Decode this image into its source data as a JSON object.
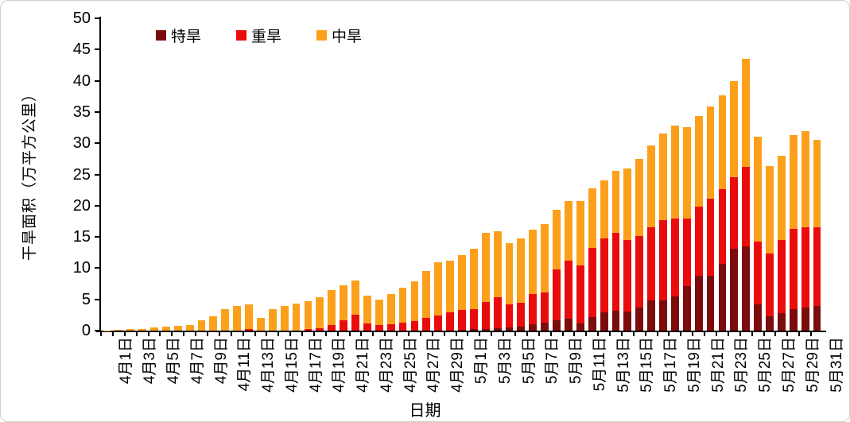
{
  "axes": {
    "x_title": "日期",
    "y_title": "干旱面积（万平方公里）",
    "y_ticks": [
      0,
      5,
      10,
      15,
      20,
      25,
      30,
      35,
      40,
      45,
      50
    ]
  },
  "legend": [
    {
      "label": "特旱",
      "color": "#7b0c0c"
    },
    {
      "label": "重旱",
      "color": "#ea0c0c"
    },
    {
      "label": "中旱",
      "color": "#fca01c"
    }
  ],
  "chart_data": {
    "type": "bar",
    "stacked": true,
    "title": "",
    "xlabel": "日期",
    "ylabel": "干旱面积（万平方公里）",
    "ylim": [
      0,
      50
    ],
    "y_tick_step": 5,
    "grid": false,
    "legend_position": "top-left-inside",
    "x_label_every": 2,
    "categories": [
      "4月1日",
      "4月2日",
      "4月3日",
      "4月4日",
      "4月5日",
      "4月6日",
      "4月7日",
      "4月8日",
      "4月9日",
      "4月10日",
      "4月11日",
      "4月12日",
      "4月13日",
      "4月14日",
      "4月15日",
      "4月16日",
      "4月17日",
      "4月18日",
      "4月19日",
      "4月20日",
      "4月21日",
      "4月22日",
      "4月23日",
      "4月24日",
      "4月25日",
      "4月26日",
      "4月27日",
      "4月28日",
      "4月29日",
      "4月30日",
      "5月1日",
      "5月2日",
      "5月3日",
      "5月4日",
      "5月5日",
      "5月6日",
      "5月7日",
      "5月8日",
      "5月9日",
      "5月10日",
      "5月11日",
      "5月12日",
      "5月13日",
      "5月14日",
      "5月15日",
      "5月16日",
      "5月17日",
      "5月18日",
      "5月19日",
      "5月20日",
      "5月21日",
      "5月22日",
      "5月23日",
      "5月24日",
      "5月25日",
      "5月26日",
      "5月27日",
      "5月28日",
      "5月29日",
      "5月30日",
      "5月31日"
    ],
    "series": [
      {
        "name": "特旱",
        "color": "#7b0c0c",
        "values": [
          0,
          0,
          0,
          0,
          0,
          0,
          0,
          0,
          0,
          0,
          0,
          0,
          0,
          0,
          0,
          0,
          0,
          0,
          0,
          0,
          0,
          0,
          0,
          0,
          0,
          0,
          0,
          0,
          0,
          0,
          0.1,
          0.2,
          0.3,
          0.4,
          0.5,
          0.6,
          1.0,
          1.3,
          1.6,
          1.9,
          1.2,
          2.2,
          2.9,
          3.2,
          3.0,
          3.7,
          4.9,
          4.9,
          5.5,
          7.1,
          8.8,
          8.8,
          10.7,
          13.1,
          13.5,
          4.2,
          2.3,
          2.8,
          3.4,
          3.7,
          4.0
        ]
      },
      {
        "name": "重旱",
        "color": "#ea0c0c",
        "values": [
          0,
          0,
          0,
          0,
          0,
          0,
          0,
          0,
          0,
          0,
          0,
          0,
          0.2,
          0,
          0,
          0,
          0,
          0.2,
          0.4,
          0.9,
          1.6,
          2.5,
          1.1,
          0.9,
          1.0,
          1.3,
          1.5,
          2.0,
          2.4,
          2.9,
          3.2,
          3.2,
          4.3,
          4.9,
          3.7,
          3.9,
          4.9,
          4.8,
          8.2,
          9.3,
          9.2,
          11.0,
          11.9,
          12.4,
          11.5,
          11.5,
          11.6,
          12.8,
          12.4,
          10.8,
          11.1,
          12.3,
          12.0,
          11.5,
          12.7,
          10.1,
          10.1,
          11.7,
          12.9,
          12.8,
          12.5
        ]
      },
      {
        "name": "中旱",
        "color": "#fca01c",
        "values": [
          0.05,
          0.1,
          0.2,
          0.3,
          0.5,
          0.6,
          0.8,
          0.9,
          1.6,
          2.3,
          3.4,
          3.9,
          4.0,
          2.1,
          3.5,
          4.0,
          4.3,
          4.5,
          5.0,
          5.6,
          5.7,
          5.5,
          4.5,
          4.1,
          4.9,
          5.6,
          6.4,
          7.6,
          8.6,
          8.3,
          8.8,
          9.7,
          11.1,
          10.6,
          9.8,
          10.3,
          10.2,
          10.9,
          9.5,
          9.6,
          10.3,
          9.6,
          9.3,
          10.0,
          11.5,
          12.3,
          13.2,
          13.8,
          14.9,
          14.7,
          14.5,
          14.8,
          15.0,
          15.4,
          17.3,
          16.7,
          13.9,
          13.5,
          15.0,
          15.4,
          14.1
        ]
      }
    ]
  }
}
